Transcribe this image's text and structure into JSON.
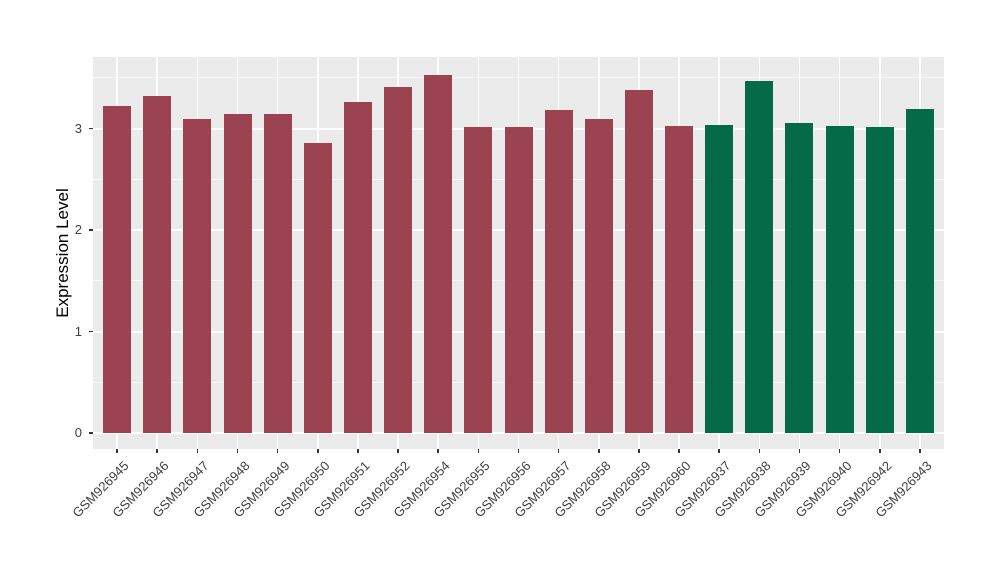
{
  "chart_data": {
    "type": "bar",
    "title": "",
    "xlabel": "",
    "ylabel": "Expression Level",
    "ylim": [
      0,
      3.7
    ],
    "y_ticks": [
      0,
      1,
      2,
      3
    ],
    "y_minor_ticks": [
      0.5,
      1.5,
      2.5,
      3.5
    ],
    "grid": "on",
    "legend_position": "none",
    "categories": [
      "GSM926945",
      "GSM926946",
      "GSM926947",
      "GSM926948",
      "GSM926949",
      "GSM926950",
      "GSM926951",
      "GSM926952",
      "GSM926954",
      "GSM926955",
      "GSM926956",
      "GSM926957",
      "GSM926958",
      "GSM926959",
      "GSM926960",
      "GSM926937",
      "GSM926938",
      "GSM926939",
      "GSM926940",
      "GSM926942",
      "GSM926943"
    ],
    "values": [
      3.22,
      3.32,
      3.09,
      3.14,
      3.14,
      2.86,
      3.26,
      3.41,
      3.53,
      3.01,
      3.01,
      3.18,
      3.09,
      3.38,
      3.02,
      3.03,
      3.47,
      3.05,
      3.02,
      3.01,
      3.19
    ],
    "bar_groups": [
      "group1",
      "group1",
      "group1",
      "group1",
      "group1",
      "group1",
      "group1",
      "group1",
      "group1",
      "group1",
      "group1",
      "group1",
      "group1",
      "group1",
      "group1",
      "group2",
      "group2",
      "group2",
      "group2",
      "group2",
      "group2"
    ],
    "group_colors": {
      "group1": "#9C4351",
      "group2": "#046A48"
    },
    "panel_background": "#EBEBEB",
    "gridline_color": "#FFFFFF"
  }
}
